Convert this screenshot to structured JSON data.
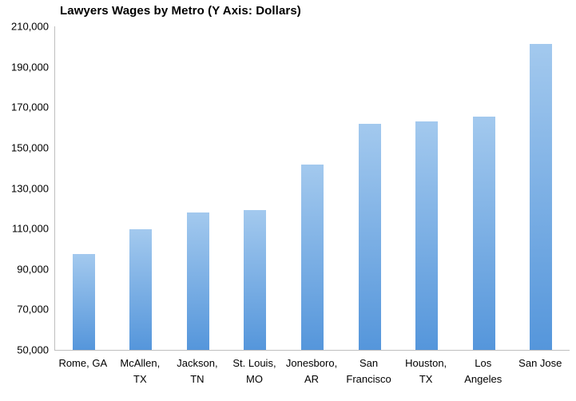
{
  "chart_data": {
    "type": "bar",
    "title": "Lawyers Wages by Metro (Y Axis: Dollars)",
    "categories": [
      "Rome, GA",
      "McAllen, TX",
      "Jackson, TN",
      "St. Louis, MO",
      "Jonesboro, AR",
      "San Francisco",
      "Houston, TX",
      "Los Angeles",
      "San Jose"
    ],
    "values": [
      97500,
      109500,
      118000,
      119000,
      141500,
      162000,
      163000,
      165500,
      201500
    ],
    "xlabel": "",
    "ylabel": "Dollars",
    "ylim": [
      50000,
      210000
    ],
    "y_tick_step": 20000,
    "y_tick_labels": [
      "210,000",
      "190,000",
      "170,000",
      "150,000",
      "130,000",
      "110,000",
      "90,000",
      "70,000",
      "50,000"
    ],
    "grid": false,
    "legend": "none",
    "colors": {
      "bar_top": "#a3c9ee",
      "bar_bottom": "#5596db",
      "axis_line": "#bfbfbf",
      "text": "#000000"
    }
  }
}
